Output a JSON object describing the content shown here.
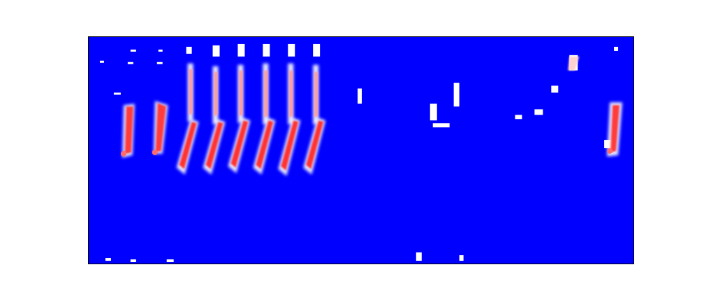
{
  "image": {
    "description_kind": "spectrogram-heatmap",
    "colors": {
      "background": "#0000ff",
      "low": "#ffffff",
      "mid": "#ff9a9a",
      "high": "#ff3030",
      "frame": "#000000",
      "page": "#ffffff"
    }
  }
}
